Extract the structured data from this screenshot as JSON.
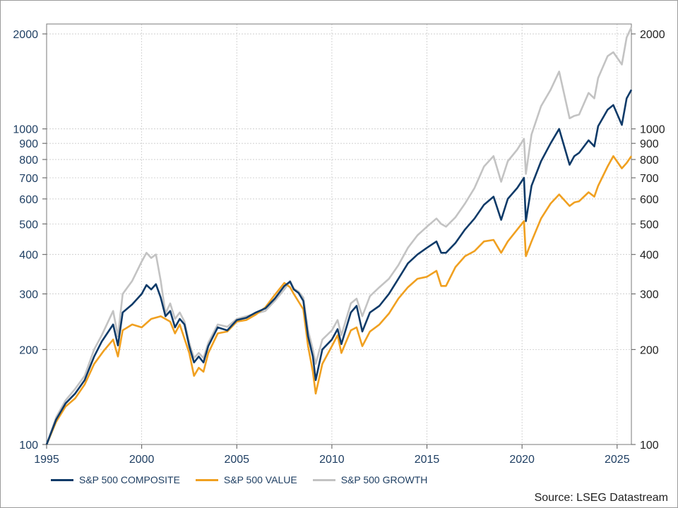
{
  "chart_data": {
    "type": "line",
    "x_ticks": [
      "1995",
      "2000",
      "2005",
      "2010",
      "2015",
      "2020",
      "2025"
    ],
    "y_scale": "log",
    "ylim": [
      100,
      2150
    ],
    "xlim": [
      1995.0,
      2025.75
    ],
    "y_ticks": [
      "100",
      "200",
      "300",
      "400",
      "500",
      "600",
      "700",
      "800",
      "900",
      "1000",
      "2000"
    ],
    "grid": true,
    "legend_position": "bottom-left",
    "series": [
      {
        "name": "S&P 500 COMPOSITE",
        "color": "#0e3a68",
        "points": [
          [
            1995.0,
            100
          ],
          [
            1995.5,
            120
          ],
          [
            1996.0,
            135
          ],
          [
            1996.5,
            145
          ],
          [
            1997.0,
            160
          ],
          [
            1997.5,
            190
          ],
          [
            1997.9,
            212
          ],
          [
            1998.5,
            240
          ],
          [
            1998.75,
            206
          ],
          [
            1999.0,
            262
          ],
          [
            1999.5,
            278
          ],
          [
            2000.0,
            300
          ],
          [
            2000.25,
            320
          ],
          [
            2000.5,
            310
          ],
          [
            2000.75,
            322
          ],
          [
            2001.0,
            292
          ],
          [
            2001.25,
            255
          ],
          [
            2001.5,
            265
          ],
          [
            2001.75,
            235
          ],
          [
            2002.0,
            250
          ],
          [
            2002.25,
            240
          ],
          [
            2002.5,
            205
          ],
          [
            2002.75,
            182
          ],
          [
            2003.0,
            190
          ],
          [
            2003.25,
            182
          ],
          [
            2003.5,
            205
          ],
          [
            2004.0,
            235
          ],
          [
            2004.5,
            230
          ],
          [
            2005.0,
            248
          ],
          [
            2005.5,
            252
          ],
          [
            2006.0,
            262
          ],
          [
            2006.5,
            270
          ],
          [
            2007.0,
            290
          ],
          [
            2007.5,
            318
          ],
          [
            2007.8,
            328
          ],
          [
            2008.0,
            310
          ],
          [
            2008.25,
            302
          ],
          [
            2008.5,
            285
          ],
          [
            2008.75,
            220
          ],
          [
            2009.0,
            190
          ],
          [
            2009.15,
            160
          ],
          [
            2009.5,
            200
          ],
          [
            2010.0,
            215
          ],
          [
            2010.3,
            232
          ],
          [
            2010.5,
            208
          ],
          [
            2011.0,
            262
          ],
          [
            2011.3,
            275
          ],
          [
            2011.6,
            228
          ],
          [
            2012.0,
            262
          ],
          [
            2012.5,
            275
          ],
          [
            2013.0,
            300
          ],
          [
            2013.5,
            335
          ],
          [
            2014.0,
            375
          ],
          [
            2014.5,
            400
          ],
          [
            2015.0,
            420
          ],
          [
            2015.5,
            440
          ],
          [
            2015.75,
            405
          ],
          [
            2016.0,
            405
          ],
          [
            2016.5,
            435
          ],
          [
            2017.0,
            480
          ],
          [
            2017.5,
            520
          ],
          [
            2018.0,
            575
          ],
          [
            2018.5,
            610
          ],
          [
            2018.9,
            515
          ],
          [
            2019.25,
            600
          ],
          [
            2019.75,
            650
          ],
          [
            2020.1,
            700
          ],
          [
            2020.2,
            510
          ],
          [
            2020.5,
            660
          ],
          [
            2021.0,
            790
          ],
          [
            2021.5,
            900
          ],
          [
            2021.95,
            1000
          ],
          [
            2022.5,
            770
          ],
          [
            2022.75,
            820
          ],
          [
            2023.0,
            840
          ],
          [
            2023.5,
            920
          ],
          [
            2023.8,
            880
          ],
          [
            2024.0,
            1020
          ],
          [
            2024.5,
            1150
          ],
          [
            2024.8,
            1190
          ],
          [
            2025.25,
            1030
          ],
          [
            2025.5,
            1250
          ],
          [
            2025.75,
            1330
          ]
        ]
      },
      {
        "name": "S&P 500 VALUE",
        "color": "#f0a020",
        "points": [
          [
            1995.0,
            100
          ],
          [
            1995.5,
            118
          ],
          [
            1996.0,
            132
          ],
          [
            1996.5,
            140
          ],
          [
            1997.0,
            155
          ],
          [
            1997.5,
            180
          ],
          [
            1998.0,
            198
          ],
          [
            1998.5,
            215
          ],
          [
            1998.75,
            190
          ],
          [
            1999.0,
            230
          ],
          [
            1999.5,
            240
          ],
          [
            2000.0,
            235
          ],
          [
            2000.5,
            250
          ],
          [
            2001.0,
            255
          ],
          [
            2001.5,
            245
          ],
          [
            2001.75,
            225
          ],
          [
            2002.0,
            240
          ],
          [
            2002.5,
            195
          ],
          [
            2002.75,
            165
          ],
          [
            2003.0,
            175
          ],
          [
            2003.25,
            170
          ],
          [
            2003.5,
            195
          ],
          [
            2004.0,
            225
          ],
          [
            2004.5,
            228
          ],
          [
            2005.0,
            245
          ],
          [
            2005.5,
            248
          ],
          [
            2006.0,
            258
          ],
          [
            2006.5,
            272
          ],
          [
            2007.0,
            298
          ],
          [
            2007.5,
            325
          ],
          [
            2007.8,
            315
          ],
          [
            2008.0,
            300
          ],
          [
            2008.5,
            268
          ],
          [
            2008.75,
            205
          ],
          [
            2009.0,
            170
          ],
          [
            2009.15,
            145
          ],
          [
            2009.5,
            180
          ],
          [
            2010.0,
            205
          ],
          [
            2010.3,
            222
          ],
          [
            2010.5,
            195
          ],
          [
            2011.0,
            230
          ],
          [
            2011.3,
            235
          ],
          [
            2011.6,
            205
          ],
          [
            2012.0,
            228
          ],
          [
            2012.5,
            240
          ],
          [
            2013.0,
            260
          ],
          [
            2013.5,
            290
          ],
          [
            2014.0,
            315
          ],
          [
            2014.5,
            335
          ],
          [
            2015.0,
            340
          ],
          [
            2015.5,
            355
          ],
          [
            2015.75,
            318
          ],
          [
            2016.0,
            318
          ],
          [
            2016.5,
            365
          ],
          [
            2017.0,
            395
          ],
          [
            2017.5,
            410
          ],
          [
            2018.0,
            440
          ],
          [
            2018.5,
            445
          ],
          [
            2018.9,
            405
          ],
          [
            2019.25,
            440
          ],
          [
            2019.75,
            480
          ],
          [
            2020.1,
            510
          ],
          [
            2020.2,
            395
          ],
          [
            2020.5,
            440
          ],
          [
            2021.0,
            520
          ],
          [
            2021.5,
            580
          ],
          [
            2021.95,
            620
          ],
          [
            2022.5,
            570
          ],
          [
            2022.75,
            585
          ],
          [
            2023.0,
            590
          ],
          [
            2023.5,
            630
          ],
          [
            2023.8,
            610
          ],
          [
            2024.0,
            660
          ],
          [
            2024.5,
            760
          ],
          [
            2024.8,
            820
          ],
          [
            2025.25,
            750
          ],
          [
            2025.5,
            780
          ],
          [
            2025.75,
            820
          ]
        ]
      },
      {
        "name": "S&P 500 GROWTH",
        "color": "#c3c3c3",
        "points": [
          [
            1995.0,
            100
          ],
          [
            1995.5,
            122
          ],
          [
            1996.0,
            138
          ],
          [
            1996.5,
            150
          ],
          [
            1997.0,
            165
          ],
          [
            1997.5,
            200
          ],
          [
            1997.9,
            222
          ],
          [
            1998.5,
            265
          ],
          [
            1998.75,
            220
          ],
          [
            1999.0,
            300
          ],
          [
            1999.5,
            330
          ],
          [
            2000.0,
            380
          ],
          [
            2000.25,
            405
          ],
          [
            2000.5,
            390
          ],
          [
            2000.75,
            400
          ],
          [
            2001.0,
            330
          ],
          [
            2001.25,
            260
          ],
          [
            2001.5,
            280
          ],
          [
            2001.75,
            250
          ],
          [
            2002.0,
            262
          ],
          [
            2002.25,
            245
          ],
          [
            2002.5,
            210
          ],
          [
            2002.75,
            188
          ],
          [
            2003.0,
            195
          ],
          [
            2003.25,
            188
          ],
          [
            2003.5,
            210
          ],
          [
            2004.0,
            240
          ],
          [
            2004.5,
            236
          ],
          [
            2005.0,
            250
          ],
          [
            2005.5,
            255
          ],
          [
            2006.0,
            260
          ],
          [
            2006.5,
            265
          ],
          [
            2007.0,
            285
          ],
          [
            2007.5,
            310
          ],
          [
            2007.8,
            330
          ],
          [
            2008.0,
            312
          ],
          [
            2008.25,
            305
          ],
          [
            2008.5,
            292
          ],
          [
            2008.75,
            230
          ],
          [
            2009.0,
            200
          ],
          [
            2009.15,
            180
          ],
          [
            2009.5,
            215
          ],
          [
            2010.0,
            230
          ],
          [
            2010.3,
            248
          ],
          [
            2010.5,
            222
          ],
          [
            2011.0,
            280
          ],
          [
            2011.3,
            290
          ],
          [
            2011.6,
            255
          ],
          [
            2012.0,
            295
          ],
          [
            2012.5,
            315
          ],
          [
            2013.0,
            335
          ],
          [
            2013.5,
            370
          ],
          [
            2014.0,
            420
          ],
          [
            2014.5,
            460
          ],
          [
            2015.0,
            490
          ],
          [
            2015.5,
            520
          ],
          [
            2015.75,
            500
          ],
          [
            2016.0,
            490
          ],
          [
            2016.5,
            525
          ],
          [
            2017.0,
            580
          ],
          [
            2017.5,
            650
          ],
          [
            2018.0,
            760
          ],
          [
            2018.5,
            820
          ],
          [
            2018.9,
            680
          ],
          [
            2019.25,
            790
          ],
          [
            2019.75,
            860
          ],
          [
            2020.1,
            930
          ],
          [
            2020.2,
            720
          ],
          [
            2020.5,
            960
          ],
          [
            2021.0,
            1180
          ],
          [
            2021.5,
            1330
          ],
          [
            2021.95,
            1520
          ],
          [
            2022.5,
            1080
          ],
          [
            2022.75,
            1100
          ],
          [
            2023.0,
            1110
          ],
          [
            2023.5,
            1300
          ],
          [
            2023.8,
            1250
          ],
          [
            2024.0,
            1450
          ],
          [
            2024.5,
            1700
          ],
          [
            2024.8,
            1750
          ],
          [
            2025.25,
            1600
          ],
          [
            2025.5,
            1950
          ],
          [
            2025.75,
            2100
          ]
        ]
      }
    ]
  },
  "source_text": "Source: LSEG Datastream"
}
